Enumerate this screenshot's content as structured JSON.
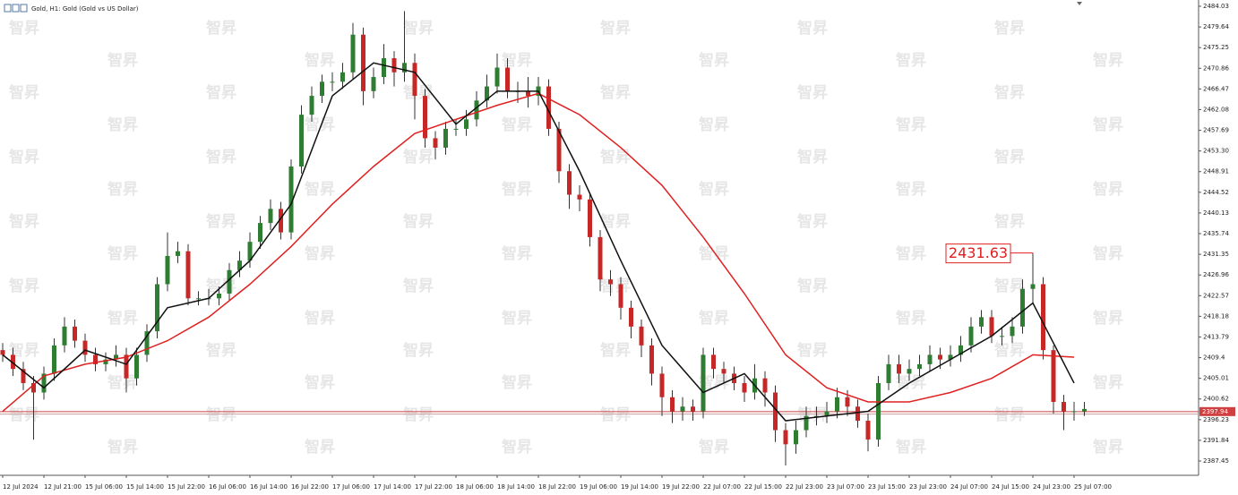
{
  "chart_data": {
    "type": "candlestick",
    "title": "Gold, H1:  Gold (Gold vs US Dollar)",
    "watermark": "智昇",
    "categories": [
      "12 Jul 2024",
      null,
      null,
      null,
      "12 Jul 21:00",
      null,
      null,
      null,
      "15 Jul 06:00",
      null,
      null,
      null,
      "15 Jul 14:00",
      null,
      null,
      null,
      "15 Jul 22:00",
      null,
      null,
      null,
      "16 Jul 06:00",
      null,
      null,
      null,
      "16 Jul 14:00",
      null,
      null,
      null,
      "16 Jul 22:00",
      null,
      null,
      null,
      "17 Jul 06:00",
      null,
      null,
      null,
      "17 Jul 14:00",
      null,
      null,
      null,
      "17 Jul 22:00",
      null,
      null,
      null,
      "18 Jul 06:00",
      null,
      null,
      null,
      "18 Jul 14:00",
      null,
      null,
      null,
      "18 Jul 22:00",
      null,
      null,
      null,
      "19 Jul 06:00",
      null,
      null,
      null,
      "19 Jul 14:00",
      null,
      null,
      null,
      "19 Jul 22:00",
      null,
      null,
      null,
      "22 Jul 07:00",
      null,
      null,
      null,
      "22 Jul 15:00",
      null,
      null,
      null,
      "22 Jul 23:00",
      null,
      null,
      null,
      "23 Jul 07:00",
      null,
      null,
      null,
      "23 Jul 15:00",
      null,
      null,
      null,
      "23 Jul 23:00",
      null,
      null,
      null,
      "24 Jul 07:00",
      null,
      null,
      null,
      "24 Jul 15:00",
      null,
      null,
      null,
      "24 Jul 23:00",
      null,
      null,
      null,
      "25 Jul 07:00",
      null
    ],
    "open": [
      2411,
      2410,
      2407,
      2404,
      2402,
      2406,
      2412,
      2416,
      2413,
      2410,
      2408,
      2409,
      2410,
      2405,
      2410,
      2415,
      2425,
      2431,
      2432,
      2422,
      2422,
      2422,
      2423,
      2428,
      2430,
      2434,
      2438,
      2441,
      2436,
      2450,
      2461,
      2465,
      2468,
      2468,
      2470,
      2478,
      2466,
      2469,
      2473,
      2470,
      2472,
      2465,
      2456,
      2454,
      2458,
      2458,
      2460,
      2464,
      2467,
      2471,
      2466,
      2466,
      2465,
      2467,
      2458,
      2449,
      2444,
      2443,
      2435,
      2426,
      2425,
      2420,
      2416,
      2412,
      2406,
      2401,
      2398,
      2399,
      2398,
      2410,
      2407,
      2406,
      2404,
      2402,
      2405,
      2402,
      2394,
      2391,
      2394,
      2397,
      2397,
      2398,
      2401,
      2399,
      2396,
      2392,
      2404,
      2408,
      2406,
      2407,
      2408,
      2410,
      2409,
      2410,
      2412,
      2416,
      2418,
      2414,
      2414,
      2416,
      2424,
      2425,
      2411,
      2400,
      2398,
      2398
    ],
    "high": [
      2412.5,
      2411.5,
      2408.5,
      2405.5,
      2407.5,
      2413.5,
      2418,
      2417.5,
      2414.5,
      2411.5,
      2410.5,
      2412,
      2411.5,
      2411.5,
      2416.5,
      2426.5,
      2436,
      2434,
      2433.5,
      2423.5,
      2424,
      2424.5,
      2429.5,
      2432,
      2436,
      2439.5,
      2443,
      2442.5,
      2451.5,
      2463,
      2467,
      2469.5,
      2470,
      2472,
      2480.5,
      2479.5,
      2471,
      2476,
      2474.5,
      2483,
      2474,
      2466.5,
      2457.5,
      2459.5,
      2460,
      2462,
      2466,
      2469.5,
      2474,
      2473,
      2468,
      2469,
      2469,
      2468.5,
      2459.5,
      2450.5,
      2446,
      2444.5,
      2436.5,
      2428,
      2426.5,
      2421.5,
      2417.5,
      2413.5,
      2407.5,
      2402.5,
      2401,
      2400.5,
      2411.5,
      2411.5,
      2408.5,
      2407.5,
      2405.5,
      2408,
      2406.5,
      2403.5,
      2395.5,
      2396,
      2399,
      2399,
      2400,
      2403,
      2402.5,
      2400.5,
      2397.5,
      2405.5,
      2410,
      2410,
      2409,
      2410,
      2412,
      2411.5,
      2412,
      2414,
      2418,
      2419.5,
      2419.5,
      2416,
      2418,
      2426,
      2431.63,
      2426.5,
      2412,
      2401.5,
      2400,
      2400
    ],
    "low": [
      2408.5,
      2405.5,
      2402.5,
      2392,
      2400.5,
      2404.5,
      2410.5,
      2411.5,
      2408.5,
      2406.5,
      2406.5,
      2407.5,
      2402,
      2403.5,
      2408.5,
      2413.5,
      2423.5,
      2429.5,
      2420.5,
      2420.5,
      2420.5,
      2420.5,
      2421.5,
      2426.5,
      2428.5,
      2432.5,
      2436.5,
      2434.5,
      2434.5,
      2448.5,
      2459.5,
      2463.5,
      2466,
      2466.5,
      2468.5,
      2463,
      2464.5,
      2467.5,
      2467,
      2468,
      2460,
      2454,
      2451.5,
      2452.5,
      2456.5,
      2456.5,
      2458.5,
      2462.5,
      2465.5,
      2464.5,
      2463.5,
      2462.5,
      2463,
      2456.5,
      2446.5,
      2441,
      2440.5,
      2433,
      2423.5,
      2422.5,
      2417.5,
      2413.5,
      2409.5,
      2403.5,
      2397,
      2395.5,
      2396,
      2396,
      2396.5,
      2405,
      2404,
      2402.5,
      2400,
      2400.5,
      2399,
      2391.5,
      2386.5,
      2389,
      2392.5,
      2395,
      2395.5,
      2396.5,
      2397,
      2394.5,
      2389.5,
      2390.5,
      2402.5,
      2404,
      2404.5,
      2405.5,
      2406.5,
      2407,
      2407.5,
      2408.5,
      2410.5,
      2414.5,
      2412.5,
      2412,
      2412.5,
      2414.5,
      2421,
      2409,
      2397.5,
      2394,
      2396,
      2397
    ],
    "close": [
      2410,
      2407,
      2404,
      2402,
      2406,
      2412,
      2416,
      2413,
      2410,
      2408,
      2409,
      2410,
      2405,
      2410,
      2415,
      2425,
      2431,
      2432,
      2422,
      2422,
      2422,
      2423,
      2428,
      2430,
      2434,
      2438,
      2441,
      2436,
      2450,
      2461,
      2465,
      2468,
      2468,
      2470,
      2478,
      2466,
      2469,
      2473,
      2470,
      2472,
      2465,
      2456,
      2454,
      2458,
      2458,
      2460,
      2464,
      2467,
      2471,
      2466,
      2466,
      2465,
      2467,
      2458,
      2449,
      2444,
      2443,
      2435,
      2426,
      2425,
      2420,
      2416,
      2412,
      2406,
      2401,
      2398,
      2399,
      2398,
      2410,
      2407,
      2406,
      2404,
      2402,
      2405,
      2402,
      2394,
      2391,
      2394,
      2397,
      2397,
      2398,
      2401,
      2399,
      2396,
      2392,
      2404,
      2408,
      2406,
      2407,
      2408,
      2410,
      2409,
      2410,
      2412,
      2416,
      2418,
      2414,
      2414,
      2416,
      2424,
      2425,
      2411,
      2400,
      2398,
      2398,
      2398.5
    ],
    "up_color": "#2e7d32",
    "down_color": "#c62828",
    "wick_color": "#333333",
    "overlays": [
      {
        "color": "#e02020",
        "x": [
          0,
          4,
          8,
          12,
          16,
          20,
          24,
          28,
          32,
          36,
          40,
          44,
          48,
          52,
          56,
          60,
          64,
          68,
          72,
          76,
          80,
          84,
          88,
          92,
          96,
          100,
          104
        ],
        "values": [
          2398,
          2405.5,
          2408,
          2409.5,
          2413,
          2418,
          2425,
          2433,
          2442,
          2450,
          2457,
          2460,
          2463,
          2465.5,
          2461,
          2454,
          2446,
          2435,
          2423,
          2410,
          2403,
          2400,
          2400,
          2402,
          2405,
          2410,
          2409.5
        ]
      },
      {
        "color": "#111111",
        "x": [
          0,
          4,
          8,
          12,
          16,
          20,
          24,
          28,
          32,
          36,
          40,
          44,
          48,
          52,
          56,
          60,
          64,
          68,
          72,
          76,
          80,
          84,
          88,
          92,
          96,
          100,
          104
        ],
        "values": [
          2410,
          2403,
          2411,
          2408,
          2420,
          2422,
          2430,
          2442,
          2465,
          2472,
          2470,
          2459,
          2466,
          2466,
          2449,
          2430,
          2412,
          2402,
          2406,
          2396,
          2397,
          2398,
          2404,
          2409,
          2414,
          2421,
          2404
        ]
      }
    ],
    "high_marker": 2431.63,
    "bid": 2397.94,
    "ask": 2397.4,
    "ylim": [
      2384.41,
      2485.36
    ],
    "yticks": [
      2484.03,
      2479.64,
      2475.25,
      2470.86,
      2466.47,
      2462.08,
      2457.69,
      {
        "value": 2453.3,
        "label": "2453.30"
      },
      2448.91,
      2444.52,
      2440.13,
      2435.74,
      2431.35,
      2426.96,
      2422.57,
      2418.18,
      2413.79,
      2409.4,
      2405.01,
      2400.62,
      2396.23,
      2391.84,
      2387.45
    ]
  }
}
